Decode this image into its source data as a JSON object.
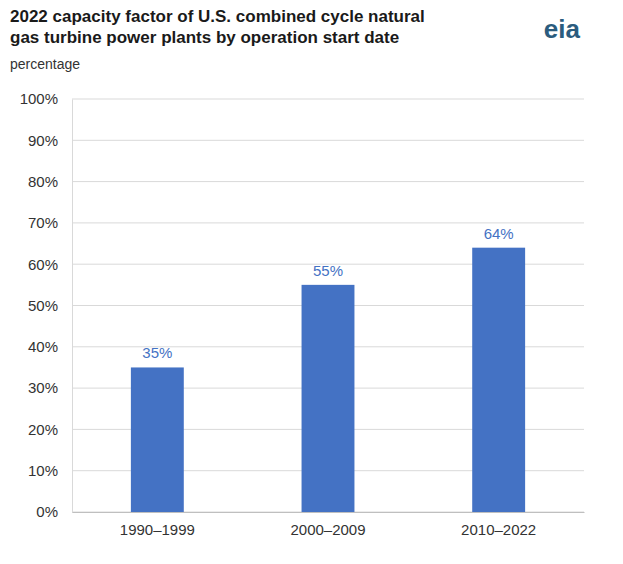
{
  "chart_data": {
    "type": "bar",
    "title": "2022 capacity factor of U.S. combined cycle natural\ngas turbine power plants by operation start date",
    "ylabel": "percentage",
    "annotations": [
      "eia"
    ],
    "categories": [
      "1990–1999",
      "2000–2009",
      "2010–2022"
    ],
    "values": [
      35,
      55,
      64
    ],
    "value_labels": [
      "35%",
      "55%",
      "64%"
    ],
    "color": "#4472c4",
    "ylim": [
      0,
      100
    ],
    "yticks": [
      {
        "value": 0,
        "label": "0%"
      },
      {
        "value": 10,
        "label": "10%"
      },
      {
        "value": 20,
        "label": "20%"
      },
      {
        "value": 30,
        "label": "30%"
      },
      {
        "value": 40,
        "label": "40%"
      },
      {
        "value": 50,
        "label": "50%"
      },
      {
        "value": 60,
        "label": "60%"
      },
      {
        "value": 70,
        "label": "70%"
      },
      {
        "value": 80,
        "label": "80%"
      },
      {
        "value": 90,
        "label": "90%"
      },
      {
        "value": 100,
        "label": "100%"
      }
    ],
    "grid": true,
    "data_labels": true
  }
}
